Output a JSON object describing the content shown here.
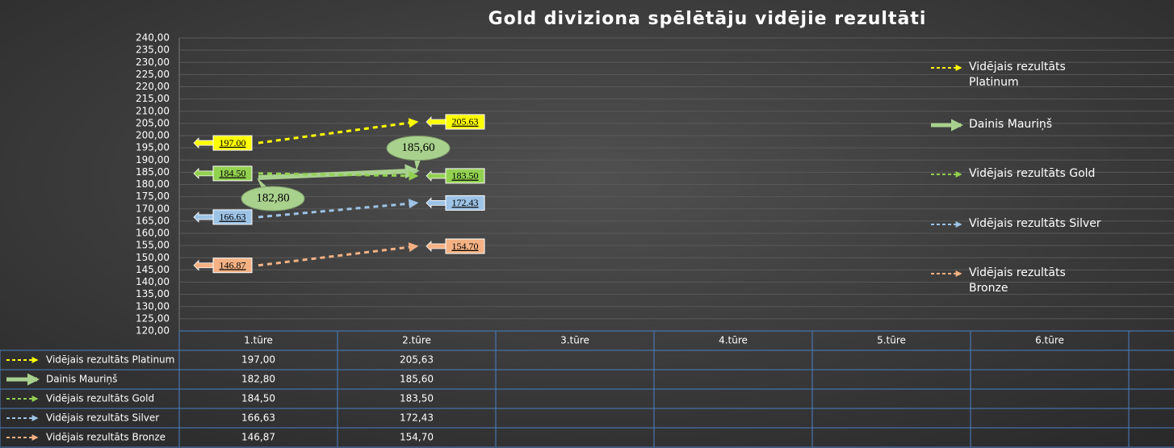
{
  "chart_data": {
    "type": "line",
    "title": "Gold diviziona spēlētāju vidējie rezultāti",
    "categories": [
      "1.tūre",
      "2.tūre",
      "3.tūre",
      "4.tūre",
      "5.tūre",
      "6.tūre",
      null
    ],
    "series": [
      {
        "name": "Vidējais rezultāts Platinum",
        "color": "#ffff00",
        "dashed": true,
        "values": [
          197.0,
          205.63,
          null,
          null,
          null,
          null,
          null
        ],
        "value_labels": [
          "197.00",
          "205.63",
          null,
          null,
          null,
          null,
          null
        ],
        "table_labels": [
          "197,00",
          "205,63",
          null,
          null,
          null,
          null,
          null
        ]
      },
      {
        "name": "Dainis Mauriņš",
        "color": "#a9d18e",
        "dashed": false,
        "values": [
          182.8,
          185.6,
          null,
          null,
          null,
          null,
          null
        ],
        "value_labels": [
          "182,80",
          "185,60",
          null,
          null,
          null,
          null,
          null
        ],
        "table_labels": [
          "182,80",
          "185,60",
          null,
          null,
          null,
          null,
          null
        ]
      },
      {
        "name": "Vidējais rezultāts Gold",
        "color": "#92d050",
        "dashed": true,
        "values": [
          184.5,
          183.5,
          null,
          null,
          null,
          null,
          null
        ],
        "value_labels": [
          "184.50",
          "183.50",
          null,
          null,
          null,
          null,
          null
        ],
        "table_labels": [
          "184,50",
          "183,50",
          null,
          null,
          null,
          null,
          null
        ]
      },
      {
        "name": "Vidējais rezultāts Silver",
        "color": "#9dc3e6",
        "dashed": true,
        "values": [
          166.63,
          172.43,
          null,
          null,
          null,
          null,
          null
        ],
        "value_labels": [
          "166.63",
          "172.43",
          null,
          null,
          null,
          null,
          null
        ],
        "table_labels": [
          "166,63",
          "172,43",
          null,
          null,
          null,
          null,
          null
        ]
      },
      {
        "name": "Vidējais rezultāts Bronze",
        "color": "#f4b183",
        "dashed": true,
        "values": [
          146.87,
          154.7,
          null,
          null,
          null,
          null,
          null
        ],
        "value_labels": [
          "146.87",
          "154.70",
          null,
          null,
          null,
          null,
          null
        ],
        "table_labels": [
          "146,87",
          "154,70",
          null,
          null,
          null,
          null,
          null
        ]
      }
    ],
    "ylim": [
      120,
      240
    ],
    "yticks": [
      {
        "value": 120,
        "label": "120,00"
      },
      {
        "value": 125,
        "label": "125,00"
      },
      {
        "value": 130,
        "label": "130,00"
      },
      {
        "value": 135,
        "label": "135,00"
      },
      {
        "value": 140,
        "label": "140,00"
      },
      {
        "value": 145,
        "label": "145,00"
      },
      {
        "value": 150,
        "label": "150,00"
      },
      {
        "value": 155,
        "label": "155,00"
      },
      {
        "value": 160,
        "label": "160,00"
      },
      {
        "value": 165,
        "label": "165,00"
      },
      {
        "value": 170,
        "label": "170,00"
      },
      {
        "value": 175,
        "label": "175,00"
      },
      {
        "value": 180,
        "label": "180,00"
      },
      {
        "value": 185,
        "label": "185,00"
      },
      {
        "value": 190,
        "label": "190,00"
      },
      {
        "value": 195,
        "label": "195,00"
      },
      {
        "value": 200,
        "label": "200,00"
      },
      {
        "value": 205,
        "label": "205,00"
      },
      {
        "value": 210,
        "label": "210,00"
      },
      {
        "value": 215,
        "label": "215,00"
      },
      {
        "value": 220,
        "label": "220,00"
      },
      {
        "value": 225,
        "label": "225,00"
      },
      {
        "value": 230,
        "label": "230,00"
      },
      {
        "value": 235,
        "label": "235,00"
      },
      {
        "value": 240,
        "label": "240,00"
      }
    ],
    "grid": true,
    "legend": "right",
    "data_table": true
  }
}
